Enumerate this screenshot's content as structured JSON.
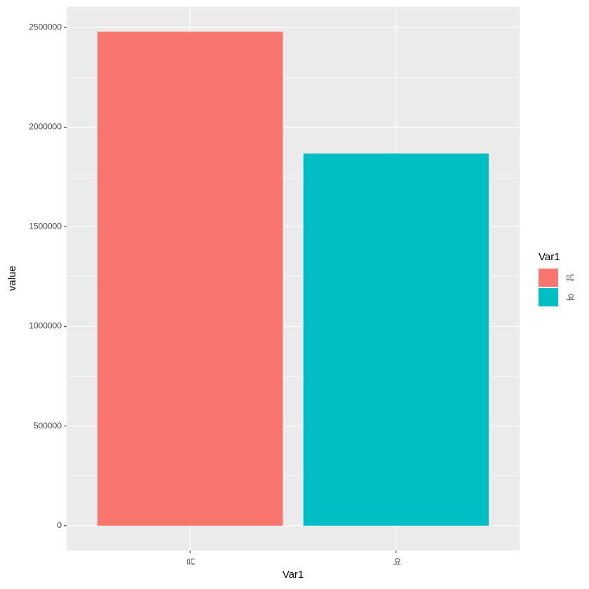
{
  "chart_data": {
    "type": "bar",
    "x_label": "Var1",
    "y_label": "value",
    "categories": [
      "남",
      "여"
    ],
    "values": [
      2479000,
      1868000
    ],
    "colors": [
      "#F8766D",
      "#00BFC4"
    ],
    "ylim": [
      -123950,
      2602950
    ],
    "yticks": [
      0,
      500000,
      1000000,
      1500000,
      2000000,
      2500000
    ],
    "grid": true,
    "legend": {
      "title": "Var1",
      "position": "right"
    }
  }
}
